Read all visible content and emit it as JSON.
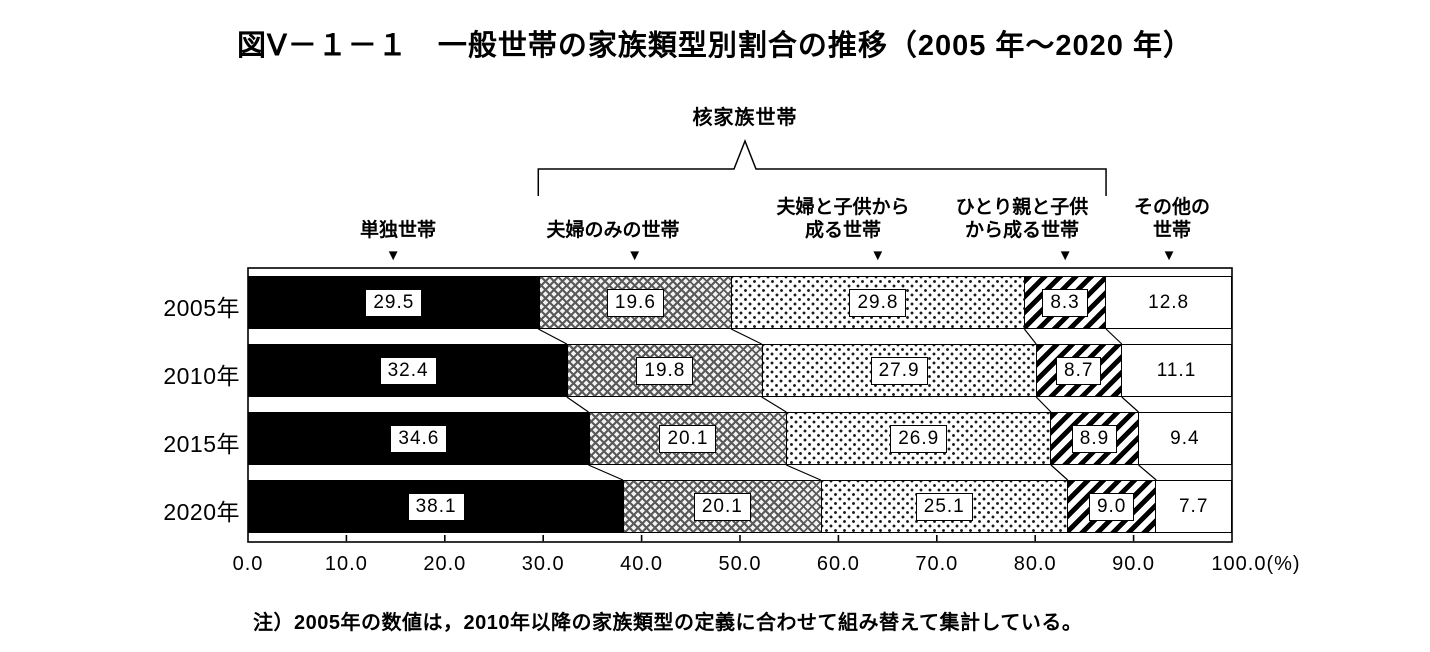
{
  "title": "図Ⅴ－１－１　一般世帯の家族類型別割合の推移（2005 年～2020 年）",
  "note": "注）2005年の数値は，2010年以降の家族類型の定義に合わせて組み替えて集計している。",
  "colors": {
    "foreground": "#000000",
    "background": "#ffffff"
  },
  "chart_data": {
    "type": "bar",
    "orientation": "horizontal",
    "stacked": true,
    "unit": "%",
    "grid": false,
    "categories": [
      "2005年",
      "2010年",
      "2015年",
      "2020年"
    ],
    "series": [
      {
        "name": "単独世帯",
        "label_lines": [
          "単独世帯"
        ],
        "pattern": "solid-black",
        "values": [
          29.5,
          32.4,
          34.6,
          38.1
        ]
      },
      {
        "name": "夫婦のみの世帯",
        "label_lines": [
          "夫婦のみの世帯"
        ],
        "pattern": "crosshatch",
        "values": [
          19.6,
          19.8,
          20.1,
          20.1
        ]
      },
      {
        "name": "夫婦と子供から成る世帯",
        "label_lines": [
          "夫婦と子供から",
          "成る世帯"
        ],
        "pattern": "dots",
        "values": [
          29.8,
          27.9,
          26.9,
          25.1
        ]
      },
      {
        "name": "ひとり親と子供から成る世帯",
        "label_lines": [
          "ひとり親と子供",
          "から成る世帯"
        ],
        "pattern": "diagonal-stripes",
        "values": [
          8.3,
          8.7,
          8.9,
          9.0
        ]
      },
      {
        "name": "その他の世帯",
        "label_lines": [
          "その他の",
          "世帯"
        ],
        "pattern": "plain-white",
        "values": [
          12.8,
          11.1,
          9.4,
          7.7
        ]
      }
    ],
    "group_bracket": {
      "label": "核家族世帯",
      "from_series": 1,
      "to_series": 3
    },
    "x_axis": {
      "min": 0,
      "max": 100,
      "tick_step": 10,
      "tick_labels": [
        "0.0",
        "10.0",
        "20.0",
        "30.0",
        "40.0",
        "50.0",
        "60.0",
        "70.0",
        "80.0",
        "90.0",
        "100.0(%)"
      ]
    },
    "pointer_marker_glyph": "▼"
  }
}
